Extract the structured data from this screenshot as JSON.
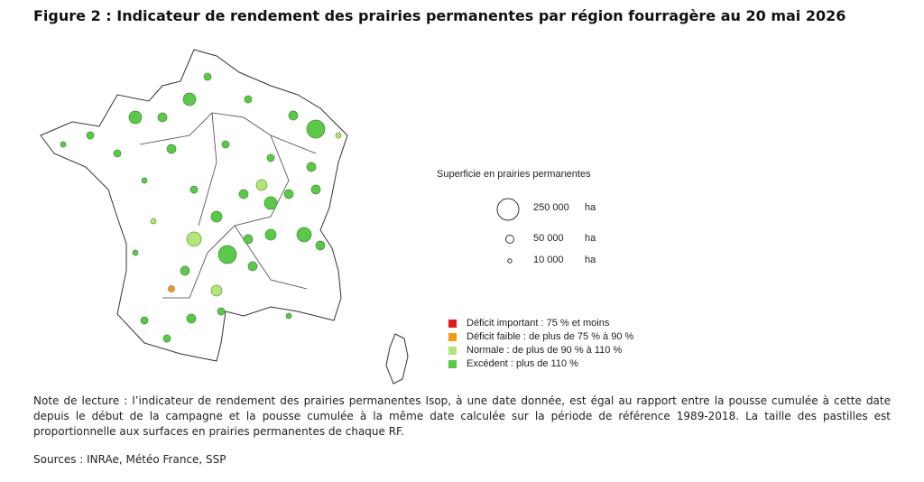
{
  "header": {
    "title": "Figure 2 : Indicateur de rendement des prairies permanentes par région fourragère au 20 mai 2026"
  },
  "legend": {
    "size_title": "Superficie en prairies permanentes",
    "sizes": [
      {
        "label": "250 000",
        "unit": "ha"
      },
      {
        "label": "50 000",
        "unit": "ha"
      },
      {
        "label": "10 000",
        "unit": "ha"
      }
    ],
    "classes": [
      {
        "label": "Déficit important : 75 % et moins",
        "color": "#e41a1c"
      },
      {
        "label": "Déficit faible :  de plus de 75 % à 90 %",
        "color": "#f39c12"
      },
      {
        "label": "Normale : de plus de 90 % à 110 %",
        "color": "#b4e57a"
      },
      {
        "label": "Excédent : plus de 110 %",
        "color": "#5cc84a"
      }
    ]
  },
  "note": "Note de lecture : l’indicateur de rendement des prairies permanentes Isop, à une date donnée, est égal au rapport entre la pousse cumulée à cette date depuis le début de la campagne et la pousse cumulée à la même date calculée sur la période de référence 1989-2018. La taille des pastilles est proportionnelle aux surfaces en prairies permanentes de chaque RF.",
  "sources": "Sources : INRAe, Météo France, SSP"
}
